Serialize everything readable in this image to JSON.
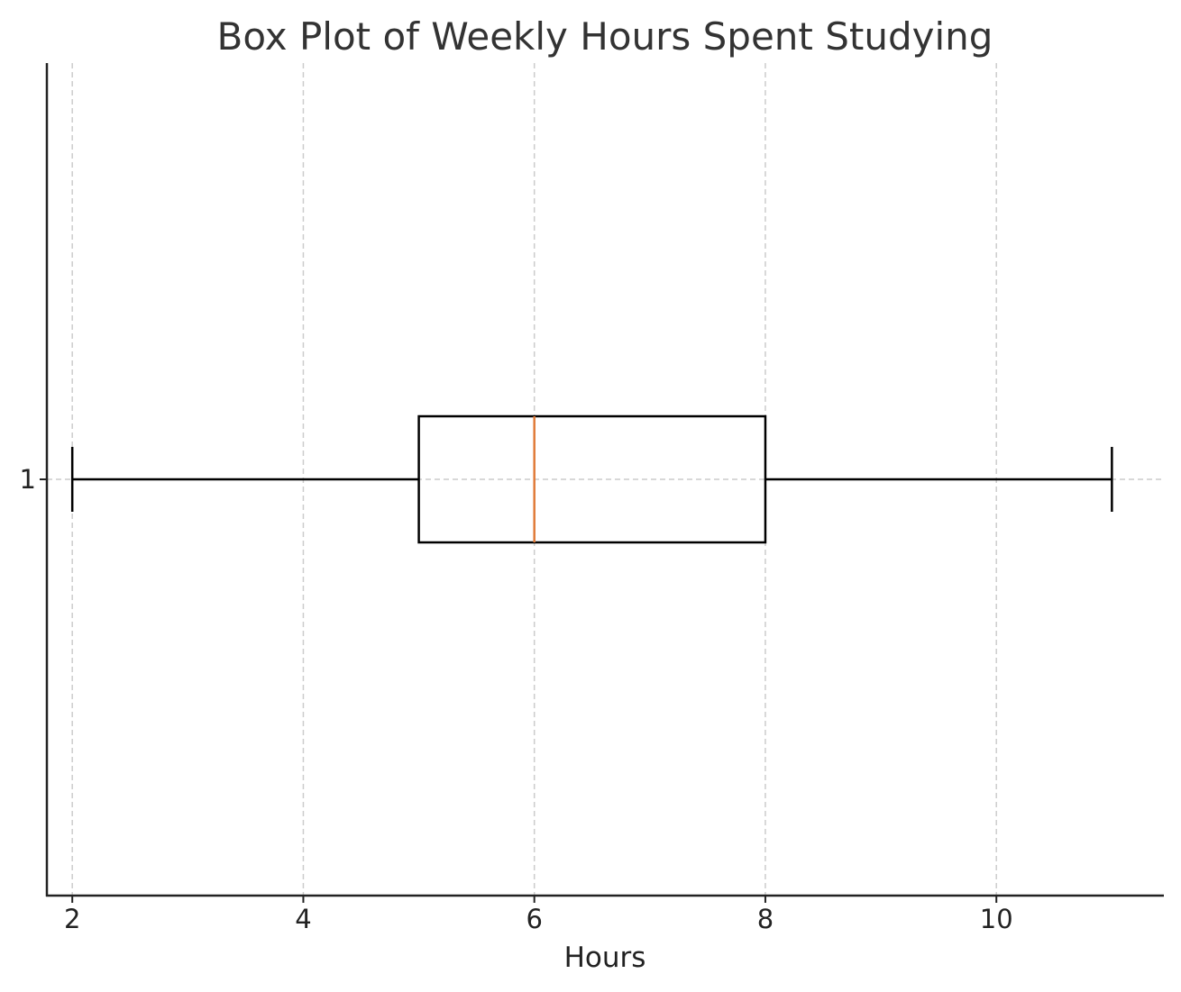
{
  "chart_data": {
    "type": "boxplot",
    "orientation": "horizontal",
    "title": "Box Plot of Weekly Hours Spent Studying",
    "xlabel": "Hours",
    "ylabel": "",
    "xlim": [
      1.78,
      11.45
    ],
    "xticks": [
      2,
      4,
      6,
      8,
      10
    ],
    "ytick_labels": [
      "1"
    ],
    "grid": true,
    "boxes": [
      {
        "label": "1",
        "whisker_low": 2,
        "q1": 5,
        "median": 6,
        "q3": 8,
        "whisker_high": 11
      }
    ],
    "colors": {
      "box": "#000000",
      "median": "#e07b39",
      "grid": "#cccccc",
      "axis": "#222222"
    }
  }
}
